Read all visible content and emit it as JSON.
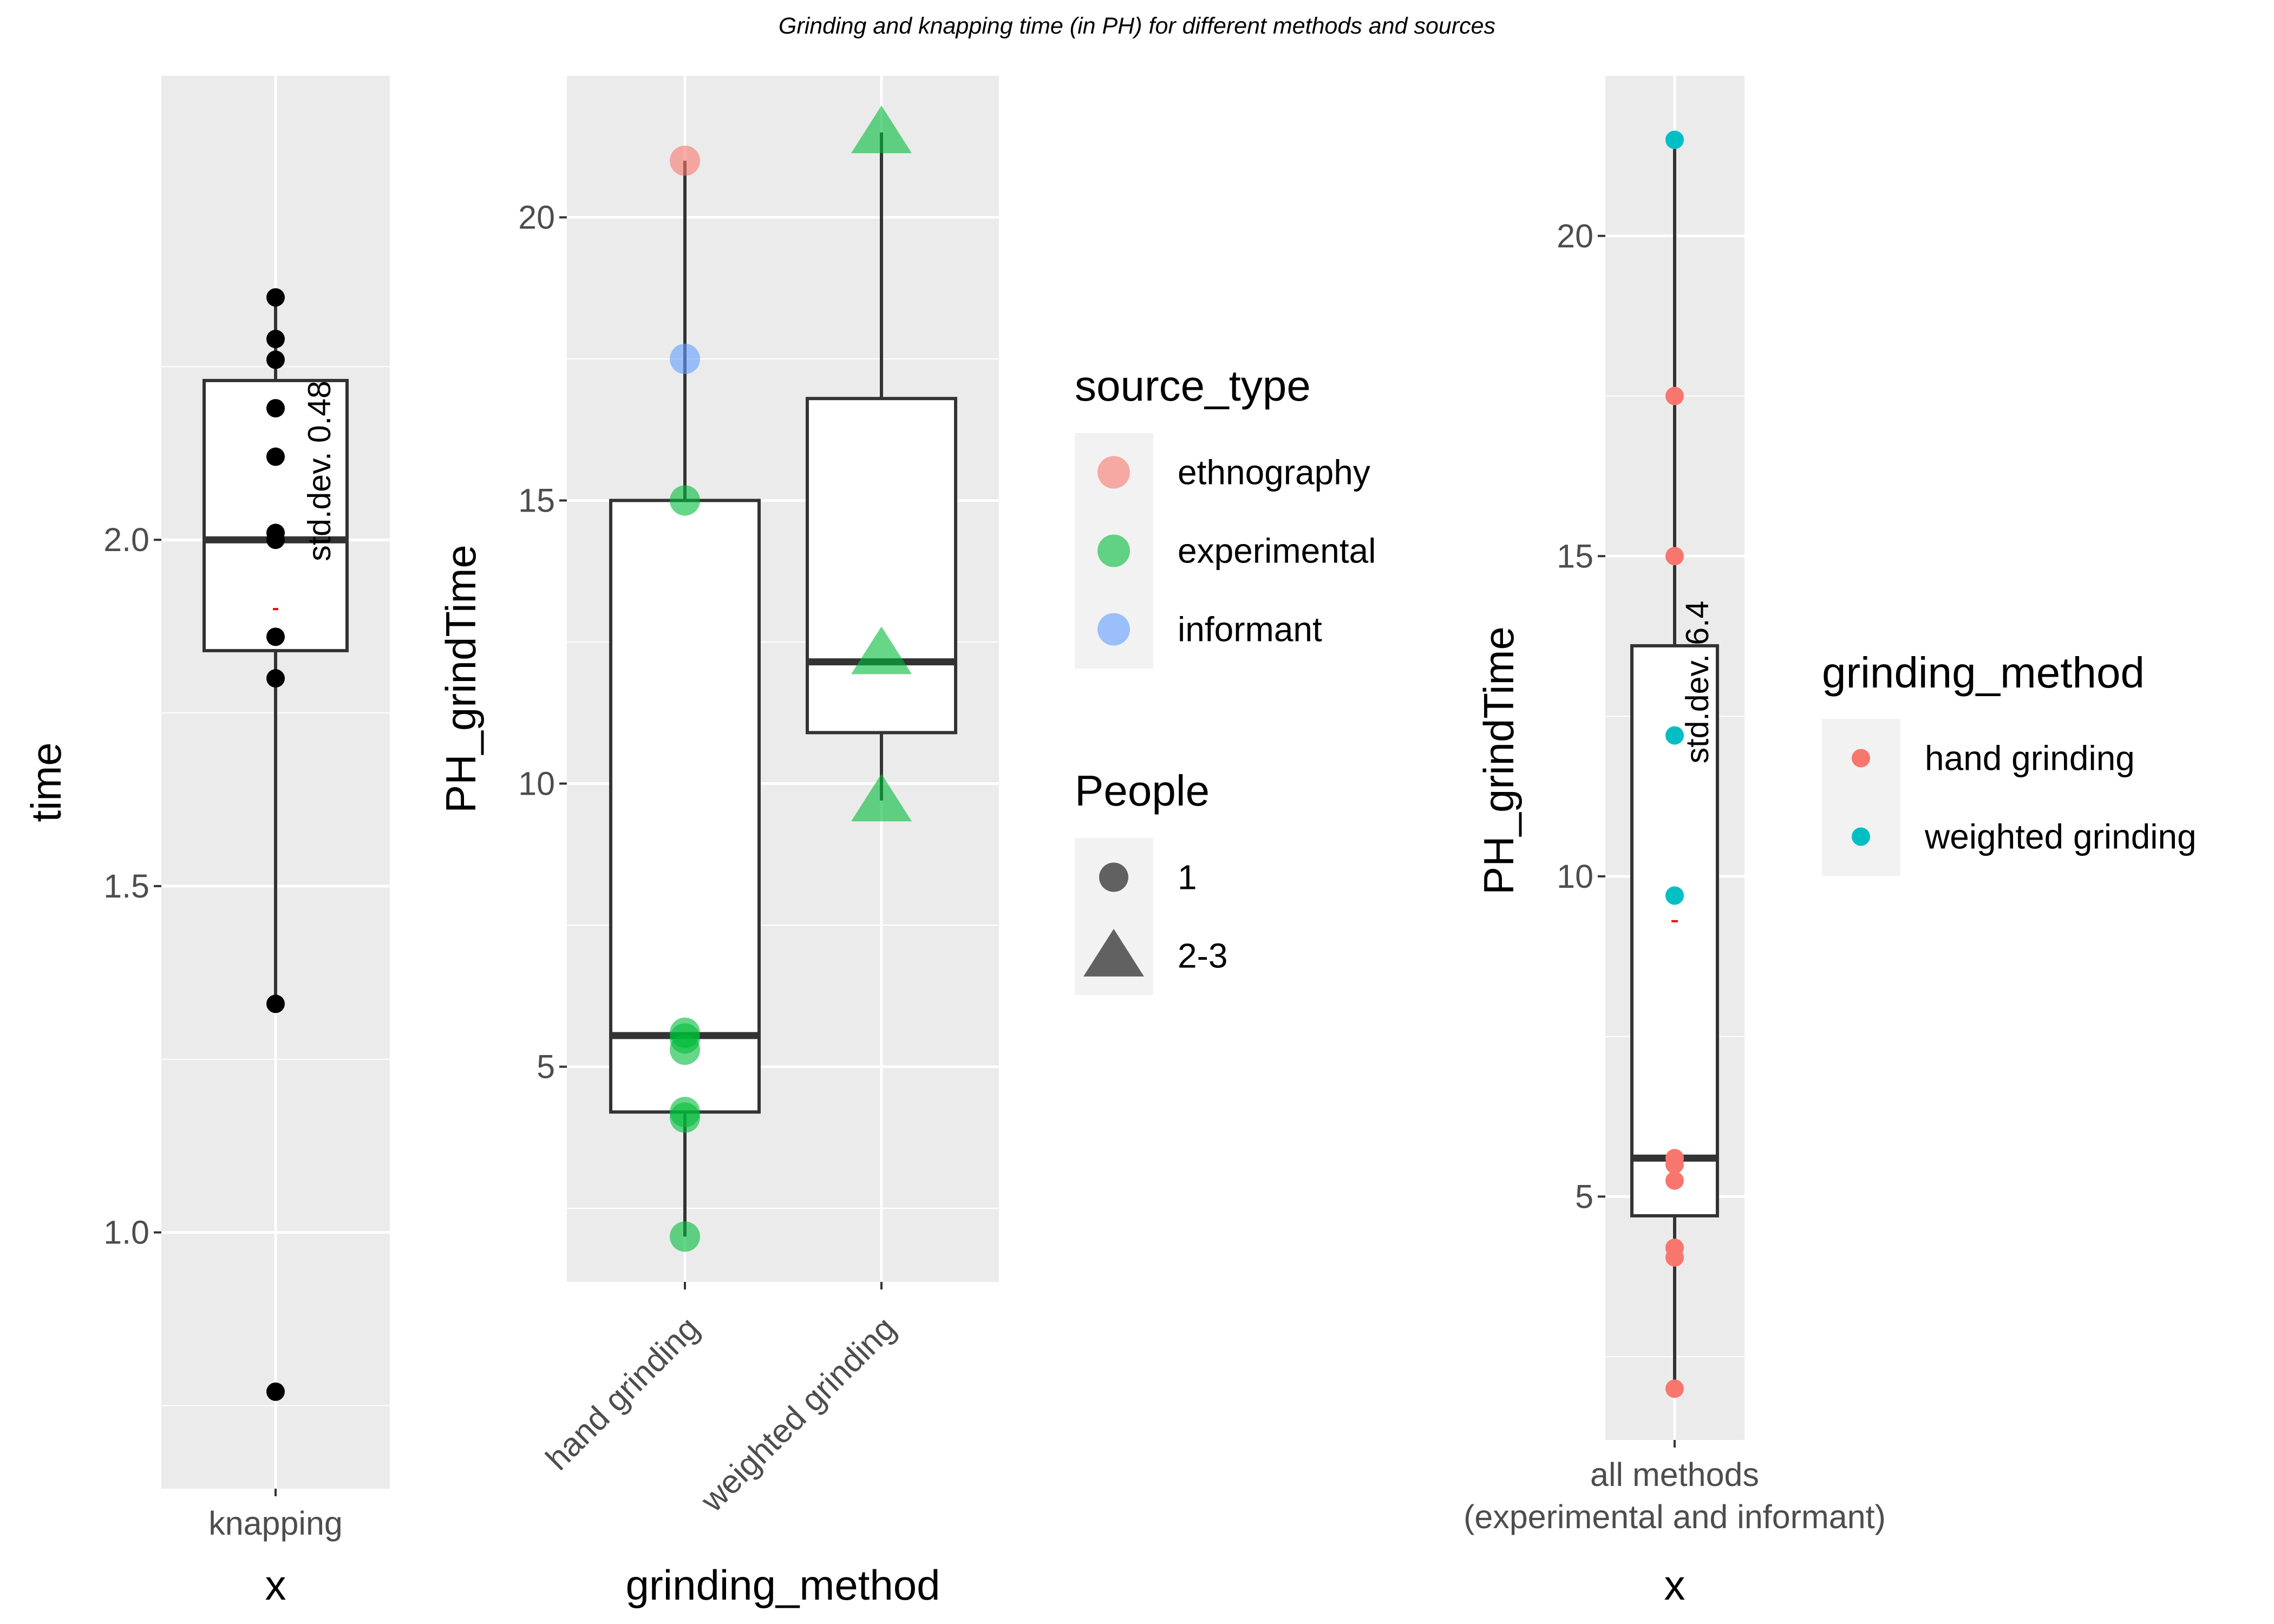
{
  "title": "Grinding and knapping time (in PH) for different methods and sources",
  "colors": {
    "panel_bg": "#EBEBEB",
    "grid": "#FFFFFF",
    "ethnography": "#F8766D",
    "experimental": "#00BA38",
    "informant": "#619CFF",
    "hand_grinding": "#F8766D",
    "weighted_grinding": "#00BFC4",
    "mean_mark": "#FF0000"
  },
  "chart_data": [
    {
      "type": "box",
      "xlabel": "x",
      "ylabel": "time",
      "ylim": [
        0.63,
        2.67
      ],
      "yticks": [
        1.0,
        1.5,
        2.0
      ],
      "ytick_labels": [
        "1.0",
        "1.5",
        "2.0"
      ],
      "categories": [
        "knapping"
      ],
      "box": {
        "q1": 1.84,
        "median": 2.0,
        "q3": 2.23,
        "whisker_low": 1.33,
        "whisker_high": 2.35
      },
      "mean": 1.9,
      "points": [
        2.35,
        2.29,
        2.26,
        2.19,
        2.12,
        2.01,
        2.0,
        1.86,
        1.8,
        1.33,
        0.77
      ],
      "annotation": "std.dev. 0.48"
    },
    {
      "type": "box",
      "xlabel": "grinding_method",
      "ylabel": "PH_grindTime",
      "ylim": [
        1.2,
        22.5
      ],
      "yticks": [
        5,
        10,
        15,
        20
      ],
      "ytick_labels": [
        "5",
        "10",
        "15",
        "20"
      ],
      "categories": [
        "hand grinding",
        "weighted grinding"
      ],
      "boxes": [
        {
          "q1": 4.2,
          "median": 5.55,
          "q3": 15.0,
          "whisker_low": 2.0,
          "whisker_high": 21.0
        },
        {
          "q1": 10.9,
          "median": 12.15,
          "q3": 16.8,
          "whisker_low": 9.7,
          "whisker_high": 21.5
        }
      ],
      "points": [
        {
          "category": "hand grinding",
          "value": 21.0,
          "source_type": "ethnography",
          "people": "1"
        },
        {
          "category": "hand grinding",
          "value": 17.5,
          "source_type": "informant",
          "people": "1"
        },
        {
          "category": "hand grinding",
          "value": 15.0,
          "source_type": "experimental",
          "people": "1"
        },
        {
          "category": "hand grinding",
          "value": 5.6,
          "source_type": "experimental",
          "people": "1"
        },
        {
          "category": "hand grinding",
          "value": 5.5,
          "source_type": "experimental",
          "people": "1"
        },
        {
          "category": "hand grinding",
          "value": 5.3,
          "source_type": "experimental",
          "people": "1"
        },
        {
          "category": "hand grinding",
          "value": 4.2,
          "source_type": "experimental",
          "people": "1"
        },
        {
          "category": "hand grinding",
          "value": 4.1,
          "source_type": "experimental",
          "people": "1"
        },
        {
          "category": "hand grinding",
          "value": 2.0,
          "source_type": "experimental",
          "people": "1"
        },
        {
          "category": "weighted grinding",
          "value": 21.5,
          "source_type": "experimental",
          "people": "2-3"
        },
        {
          "category": "weighted grinding",
          "value": 12.3,
          "source_type": "experimental",
          "people": "2-3"
        },
        {
          "category": "weighted grinding",
          "value": 9.7,
          "source_type": "experimental",
          "people": "2-3"
        }
      ],
      "legends": [
        {
          "title": "source_type",
          "entries": [
            "ethnography",
            "experimental",
            "informant"
          ]
        },
        {
          "title": "People",
          "entries": [
            "1",
            "2-3"
          ]
        }
      ]
    },
    {
      "type": "box",
      "xlabel": "x",
      "ylabel": "PH_grindTime",
      "ylim": [
        1.2,
        22.5
      ],
      "yticks": [
        5,
        10,
        15,
        20
      ],
      "ytick_labels": [
        "5",
        "10",
        "15",
        "20"
      ],
      "categories": [
        "all methods\n(experimental and informant)"
      ],
      "category_lines": [
        "all methods",
        "(experimental and informant)"
      ],
      "box": {
        "q1": 4.7,
        "median": 5.6,
        "q3": 13.6,
        "whisker_low": 2.0,
        "whisker_high": 21.5
      },
      "mean": 9.3,
      "points": [
        {
          "value": 21.5,
          "grinding_method": "weighted grinding"
        },
        {
          "value": 17.5,
          "grinding_method": "hand grinding"
        },
        {
          "value": 15.0,
          "grinding_method": "hand grinding"
        },
        {
          "value": 12.2,
          "grinding_method": "weighted grinding"
        },
        {
          "value": 9.7,
          "grinding_method": "weighted grinding"
        },
        {
          "value": 5.6,
          "grinding_method": "hand grinding"
        },
        {
          "value": 5.5,
          "grinding_method": "hand grinding"
        },
        {
          "value": 5.25,
          "grinding_method": "hand grinding"
        },
        {
          "value": 4.2,
          "grinding_method": "hand grinding"
        },
        {
          "value": 4.05,
          "grinding_method": "hand grinding"
        },
        {
          "value": 2.0,
          "grinding_method": "hand grinding"
        }
      ],
      "annotation": "std.dev. 6.4",
      "legends": [
        {
          "title": "grinding_method",
          "entries": [
            "hand grinding",
            "weighted grinding"
          ]
        }
      ]
    }
  ]
}
